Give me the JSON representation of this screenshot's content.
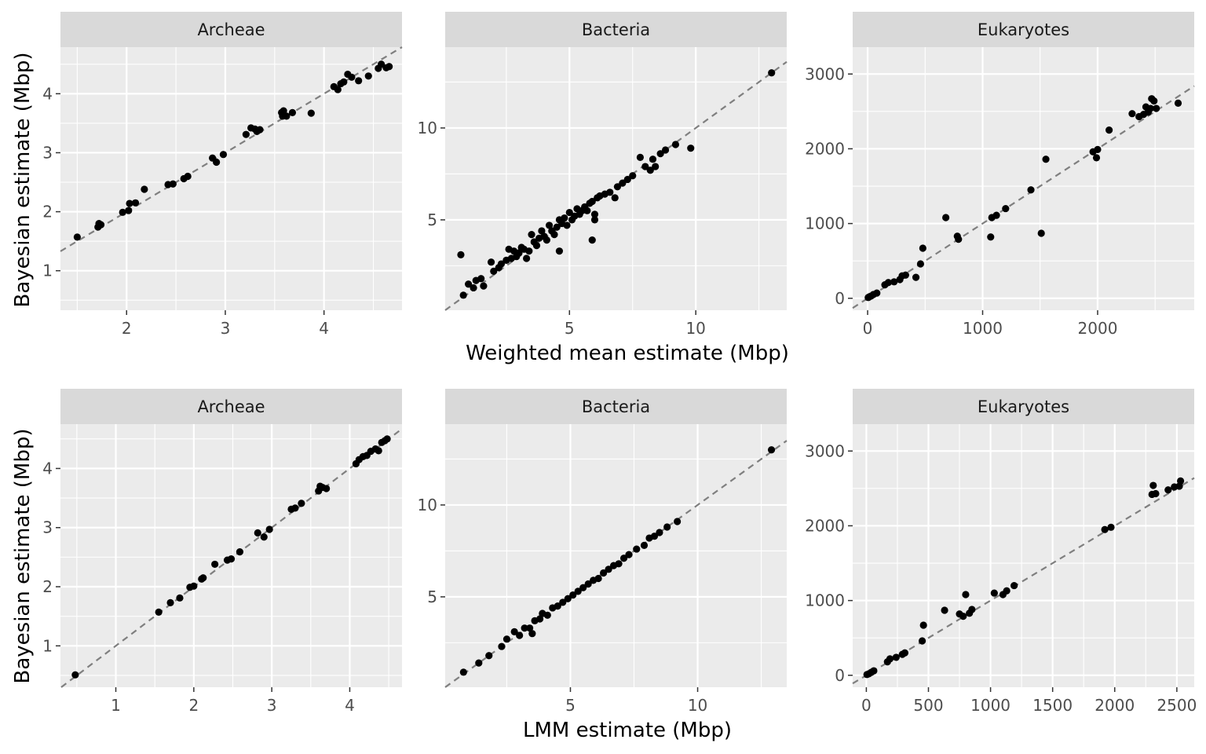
{
  "figure": {
    "row_titles": {
      "top_xlabel": "Weighted mean estimate (Mbp)",
      "bottom_xlabel": "LMM estimate (Mbp)",
      "ylabel": "Bayesian estimate (Mbp)"
    },
    "colors": {
      "panel_bg": "#ebebeb",
      "strip_bg": "#d9d9d9",
      "grid": "#ffffff",
      "point": "#000000",
      "reference_line": "#7f7f7f",
      "axis_text": "#4d4d4d"
    }
  },
  "chart_data": [
    {
      "type": "scatter",
      "title": "Archeae",
      "xlabel": "",
      "ylabel": "Bayesian estimate (Mbp)",
      "xlim": [
        1.33,
        4.79
      ],
      "ylim": [
        0.33,
        4.79
      ],
      "xticks": [
        2,
        3,
        4
      ],
      "yticks": [
        1,
        2,
        3,
        4
      ],
      "reference_line": "y = x",
      "points": [
        [
          1.5,
          1.57
        ],
        [
          1.71,
          1.74
        ],
        [
          1.72,
          1.8
        ],
        [
          1.74,
          1.78
        ],
        [
          1.96,
          1.99
        ],
        [
          2.02,
          2.02
        ],
        [
          2.03,
          2.14
        ],
        [
          2.09,
          2.15
        ],
        [
          2.18,
          2.38
        ],
        [
          2.42,
          2.46
        ],
        [
          2.47,
          2.47
        ],
        [
          2.58,
          2.56
        ],
        [
          2.62,
          2.6
        ],
        [
          2.87,
          2.91
        ],
        [
          2.91,
          2.84
        ],
        [
          2.98,
          2.97
        ],
        [
          3.21,
          3.31
        ],
        [
          3.26,
          3.42
        ],
        [
          3.3,
          3.4
        ],
        [
          3.32,
          3.36
        ],
        [
          3.35,
          3.39
        ],
        [
          3.57,
          3.68
        ],
        [
          3.58,
          3.62
        ],
        [
          3.59,
          3.71
        ],
        [
          3.62,
          3.62
        ],
        [
          3.68,
          3.68
        ],
        [
          3.87,
          3.67
        ],
        [
          4.1,
          4.12
        ],
        [
          4.14,
          4.07
        ],
        [
          4.17,
          4.17
        ],
        [
          4.2,
          4.2
        ],
        [
          4.24,
          4.33
        ],
        [
          4.28,
          4.28
        ],
        [
          4.35,
          4.22
        ],
        [
          4.45,
          4.3
        ],
        [
          4.55,
          4.43
        ],
        [
          4.58,
          4.5
        ],
        [
          4.63,
          4.44
        ],
        [
          4.66,
          4.46
        ]
      ]
    },
    {
      "type": "scatter",
      "title": "Bacteria",
      "xlabel": "Weighted mean estimate (Mbp)",
      "ylabel": "",
      "xlim": [
        0.08,
        13.6
      ],
      "ylim": [
        0.08,
        14.4
      ],
      "xticks": [
        5,
        10
      ],
      "yticks": [
        5,
        10
      ],
      "reference_line": "y = x",
      "points": [
        [
          0.7,
          3.1
        ],
        [
          0.8,
          0.9
        ],
        [
          1.0,
          1.5
        ],
        [
          1.2,
          1.3
        ],
        [
          1.3,
          1.7
        ],
        [
          1.5,
          1.8
        ],
        [
          1.6,
          1.4
        ],
        [
          1.9,
          2.7
        ],
        [
          2.0,
          2.2
        ],
        [
          2.2,
          2.4
        ],
        [
          2.3,
          2.6
        ],
        [
          2.5,
          2.8
        ],
        [
          2.6,
          3.4
        ],
        [
          2.7,
          2.9
        ],
        [
          2.8,
          3.3
        ],
        [
          2.9,
          3.0
        ],
        [
          3.0,
          3.2
        ],
        [
          3.1,
          3.5
        ],
        [
          3.2,
          3.4
        ],
        [
          3.3,
          2.9
        ],
        [
          3.4,
          3.3
        ],
        [
          3.5,
          4.2
        ],
        [
          3.6,
          3.8
        ],
        [
          3.7,
          3.6
        ],
        [
          3.8,
          4.0
        ],
        [
          3.9,
          4.4
        ],
        [
          4.0,
          4.1
        ],
        [
          4.1,
          3.9
        ],
        [
          4.2,
          4.7
        ],
        [
          4.3,
          4.4
        ],
        [
          4.4,
          4.2
        ],
        [
          4.5,
          4.6
        ],
        [
          4.6,
          3.3
        ],
        [
          4.6,
          5.0
        ],
        [
          4.7,
          4.8
        ],
        [
          4.8,
          5.1
        ],
        [
          4.9,
          4.7
        ],
        [
          5.0,
          5.4
        ],
        [
          5.1,
          5.0
        ],
        [
          5.2,
          5.2
        ],
        [
          5.3,
          5.6
        ],
        [
          5.4,
          5.3
        ],
        [
          5.5,
          5.5
        ],
        [
          5.6,
          5.7
        ],
        [
          5.7,
          5.5
        ],
        [
          5.8,
          5.9
        ],
        [
          5.9,
          3.9
        ],
        [
          5.9,
          6.0
        ],
        [
          6.0,
          5.0
        ],
        [
          6.0,
          5.3
        ],
        [
          6.1,
          6.2
        ],
        [
          6.2,
          6.3
        ],
        [
          6.4,
          6.4
        ],
        [
          6.6,
          6.5
        ],
        [
          6.8,
          6.2
        ],
        [
          6.9,
          6.8
        ],
        [
          7.1,
          7.0
        ],
        [
          7.3,
          7.2
        ],
        [
          7.5,
          7.4
        ],
        [
          7.8,
          8.4
        ],
        [
          8.0,
          7.9
        ],
        [
          8.2,
          7.7
        ],
        [
          8.3,
          8.3
        ],
        [
          8.4,
          7.9
        ],
        [
          8.6,
          8.6
        ],
        [
          8.8,
          8.8
        ],
        [
          9.2,
          9.1
        ],
        [
          9.8,
          8.9
        ],
        [
          13.0,
          13.0
        ]
      ]
    },
    {
      "type": "scatter",
      "title": "Eukaryotes",
      "xlabel": "",
      "ylabel": "",
      "xlim": [
        -130,
        2840
      ],
      "ylim": [
        -160,
        3360
      ],
      "xticks": [
        0,
        1000,
        2000
      ],
      "yticks": [
        0,
        1000,
        2000,
        3000
      ],
      "reference_line": "y = x",
      "points": [
        [
          5,
          10
        ],
        [
          15,
          20
        ],
        [
          30,
          30
        ],
        [
          50,
          50
        ],
        [
          80,
          70
        ],
        [
          150,
          180
        ],
        [
          180,
          210
        ],
        [
          230,
          220
        ],
        [
          280,
          250
        ],
        [
          300,
          300
        ],
        [
          330,
          310
        ],
        [
          420,
          280
        ],
        [
          460,
          460
        ],
        [
          480,
          670
        ],
        [
          680,
          1080
        ],
        [
          780,
          830
        ],
        [
          790,
          790
        ],
        [
          1070,
          820
        ],
        [
          1080,
          1080
        ],
        [
          1120,
          1110
        ],
        [
          1200,
          1200
        ],
        [
          1420,
          1450
        ],
        [
          1510,
          870
        ],
        [
          1550,
          1860
        ],
        [
          1960,
          1960
        ],
        [
          1990,
          1880
        ],
        [
          2000,
          1990
        ],
        [
          2100,
          2250
        ],
        [
          2300,
          2470
        ],
        [
          2360,
          2430
        ],
        [
          2400,
          2460
        ],
        [
          2420,
          2560
        ],
        [
          2440,
          2490
        ],
        [
          2460,
          2540
        ],
        [
          2470,
          2670
        ],
        [
          2490,
          2640
        ],
        [
          2510,
          2540
        ],
        [
          2700,
          2610
        ]
      ]
    },
    {
      "type": "scatter",
      "title": "Archeae",
      "xlabel": "",
      "ylabel": "Bayesian estimate (Mbp)",
      "xlim": [
        0.29,
        4.67
      ],
      "ylim": [
        0.3,
        4.75
      ],
      "xticks": [
        1,
        2,
        3,
        4
      ],
      "yticks": [
        1,
        2,
        3,
        4
      ],
      "reference_line": "y = x",
      "points": [
        [
          0.48,
          0.51
        ],
        [
          1.55,
          1.57
        ],
        [
          1.7,
          1.73
        ],
        [
          1.82,
          1.81
        ],
        [
          1.95,
          1.99
        ],
        [
          2.0,
          2.01
        ],
        [
          2.1,
          2.13
        ],
        [
          2.12,
          2.15
        ],
        [
          2.27,
          2.38
        ],
        [
          2.43,
          2.45
        ],
        [
          2.48,
          2.47
        ],
        [
          2.59,
          2.59
        ],
        [
          2.82,
          2.91
        ],
        [
          2.9,
          2.84
        ],
        [
          2.97,
          2.97
        ],
        [
          3.25,
          3.31
        ],
        [
          3.3,
          3.33
        ],
        [
          3.38,
          3.41
        ],
        [
          3.6,
          3.62
        ],
        [
          3.62,
          3.7
        ],
        [
          3.65,
          3.68
        ],
        [
          3.7,
          3.66
        ],
        [
          4.08,
          4.08
        ],
        [
          4.12,
          4.15
        ],
        [
          4.17,
          4.2
        ],
        [
          4.22,
          4.22
        ],
        [
          4.27,
          4.29
        ],
        [
          4.33,
          4.33
        ],
        [
          4.37,
          4.3
        ],
        [
          4.41,
          4.44
        ],
        [
          4.45,
          4.47
        ],
        [
          4.48,
          4.5
        ]
      ]
    },
    {
      "type": "scatter",
      "title": "Bacteria",
      "xlabel": "LMM estimate (Mbp)",
      "ylabel": "",
      "xlim": [
        0.08,
        13.5
      ],
      "ylim": [
        0.08,
        14.4
      ],
      "xticks": [
        5,
        10
      ],
      "yticks": [
        5,
        10
      ],
      "reference_line": "y = x",
      "points": [
        [
          0.8,
          0.9
        ],
        [
          1.4,
          1.4
        ],
        [
          1.8,
          1.8
        ],
        [
          2.3,
          2.3
        ],
        [
          2.5,
          2.7
        ],
        [
          2.8,
          3.1
        ],
        [
          3.0,
          2.9
        ],
        [
          3.2,
          3.3
        ],
        [
          3.4,
          3.3
        ],
        [
          3.5,
          3.0
        ],
        [
          3.6,
          3.7
        ],
        [
          3.8,
          3.8
        ],
        [
          3.9,
          4.1
        ],
        [
          4.1,
          4.0
        ],
        [
          4.3,
          4.4
        ],
        [
          4.5,
          4.5
        ],
        [
          4.7,
          4.7
        ],
        [
          4.9,
          4.9
        ],
        [
          5.1,
          5.1
        ],
        [
          5.3,
          5.3
        ],
        [
          5.5,
          5.5
        ],
        [
          5.7,
          5.7
        ],
        [
          5.9,
          5.9
        ],
        [
          6.1,
          6.0
        ],
        [
          6.3,
          6.3
        ],
        [
          6.5,
          6.5
        ],
        [
          6.7,
          6.7
        ],
        [
          6.9,
          6.8
        ],
        [
          7.1,
          7.1
        ],
        [
          7.3,
          7.3
        ],
        [
          7.6,
          7.6
        ],
        [
          7.9,
          7.8
        ],
        [
          8.1,
          8.2
        ],
        [
          8.3,
          8.3
        ],
        [
          8.5,
          8.5
        ],
        [
          8.8,
          8.8
        ],
        [
          9.2,
          9.1
        ],
        [
          12.9,
          13.0
        ]
      ]
    },
    {
      "type": "scatter",
      "title": "Eukaryotes",
      "xlabel": "",
      "ylabel": "",
      "xlim": [
        -110,
        2640
      ],
      "ylim": [
        -160,
        3360
      ],
      "xticks": [
        0,
        500,
        1000,
        1500,
        2000,
        2500
      ],
      "yticks": [
        0,
        1000,
        2000,
        3000
      ],
      "reference_line": "y = x",
      "points": [
        [
          5,
          10
        ],
        [
          20,
          20
        ],
        [
          40,
          40
        ],
        [
          60,
          60
        ],
        [
          170,
          180
        ],
        [
          190,
          220
        ],
        [
          240,
          240
        ],
        [
          290,
          280
        ],
        [
          310,
          300
        ],
        [
          450,
          460
        ],
        [
          460,
          670
        ],
        [
          630,
          870
        ],
        [
          750,
          820
        ],
        [
          780,
          790
        ],
        [
          800,
          1080
        ],
        [
          830,
          830
        ],
        [
          850,
          880
        ],
        [
          1030,
          1100
        ],
        [
          1100,
          1080
        ],
        [
          1130,
          1130
        ],
        [
          1190,
          1200
        ],
        [
          1920,
          1950
        ],
        [
          1970,
          1980
        ],
        [
          2300,
          2420
        ],
        [
          2310,
          2540
        ],
        [
          2330,
          2430
        ],
        [
          2430,
          2480
        ],
        [
          2480,
          2520
        ],
        [
          2520,
          2530
        ],
        [
          2530,
          2600
        ]
      ]
    }
  ]
}
